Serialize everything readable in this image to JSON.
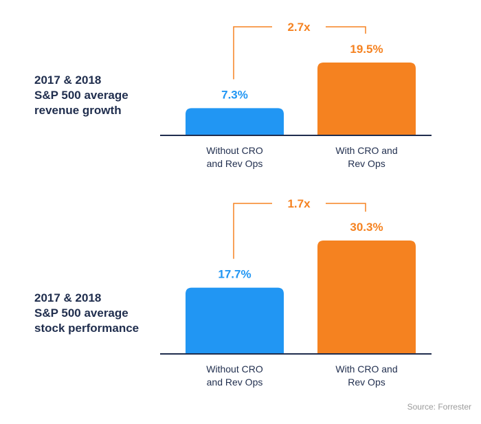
{
  "colors": {
    "title": "#1f2d4d",
    "without": "#2196f3",
    "with": "#f58220",
    "axis": "#1f2d4d",
    "category_text": "#1f2d4d",
    "source_text": "#9a9a9a"
  },
  "source": "Source: Forrester",
  "chart_data": [
    {
      "type": "bar",
      "title_lines": [
        "2017 & 2018",
        "S&P 500 average",
        "revenue growth"
      ],
      "categories": [
        [
          "Without CRO",
          "and Rev Ops"
        ],
        [
          "With CRO and",
          "Rev Ops"
        ]
      ],
      "values": [
        7.3,
        19.5
      ],
      "value_labels": [
        "7.3%",
        "19.5%"
      ],
      "ratio_label": "2.7x",
      "ylim": [
        0,
        19.5
      ]
    },
    {
      "type": "bar",
      "title_lines": [
        "2017 & 2018",
        "S&P 500 average",
        "stock performance"
      ],
      "categories": [
        [
          "Without CRO",
          "and Rev Ops"
        ],
        [
          "With CRO and",
          "Rev Ops"
        ]
      ],
      "values": [
        17.7,
        30.3
      ],
      "value_labels": [
        "17.7%",
        "30.3%"
      ],
      "ratio_label": "1.7x",
      "ylim": [
        0,
        30.3
      ]
    }
  ]
}
